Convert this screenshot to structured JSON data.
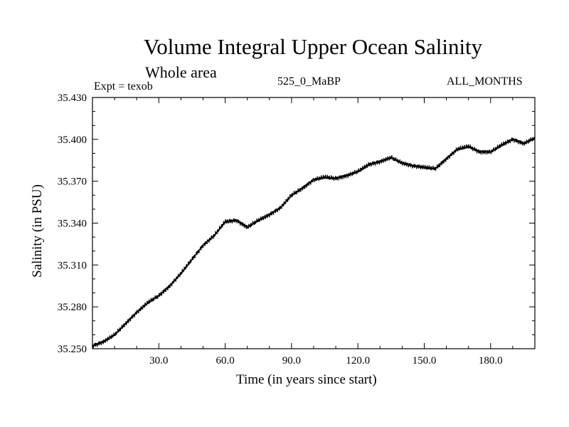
{
  "chart_data": {
    "type": "line",
    "title": "Volume Integral Upper Ocean Salinity",
    "subtitle": "Whole area",
    "experiment_label": "Expt = texob",
    "model_label": "525_0_MaBP",
    "months_label": "ALL_MONTHS",
    "xlabel": "Time (in years since start)",
    "ylabel": "Salinity (in PSU)",
    "xlim": [
      0,
      200
    ],
    "ylim": [
      35.25,
      35.43
    ],
    "x_ticks": [
      "30.0",
      "60.0",
      "90.0",
      "120.0",
      "150.0",
      "180.0"
    ],
    "y_ticks": [
      "35.250",
      "35.280",
      "35.310",
      "35.340",
      "35.370",
      "35.400",
      "35.430"
    ],
    "grid": false,
    "line_color": "#000000",
    "series": [
      {
        "name": "Salinity",
        "x": [
          0,
          5,
          10,
          15,
          20,
          25,
          30,
          35,
          40,
          45,
          50,
          55,
          60,
          65,
          70,
          75,
          80,
          85,
          90,
          95,
          100,
          105,
          110,
          115,
          120,
          125,
          130,
          135,
          140,
          145,
          150,
          155,
          160,
          165,
          170,
          175,
          180,
          185,
          190,
          195,
          200
        ],
        "y": [
          35.252,
          35.255,
          35.26,
          35.268,
          35.276,
          35.283,
          35.288,
          35.295,
          35.304,
          35.314,
          35.324,
          35.331,
          35.341,
          35.342,
          35.337,
          35.342,
          35.346,
          35.351,
          35.36,
          35.365,
          35.371,
          35.373,
          35.372,
          35.374,
          35.377,
          35.382,
          35.384,
          35.387,
          35.383,
          35.381,
          35.38,
          35.379,
          35.386,
          35.393,
          35.395,
          35.391,
          35.391,
          35.396,
          35.4,
          35.397,
          35.401
        ]
      }
    ]
  }
}
